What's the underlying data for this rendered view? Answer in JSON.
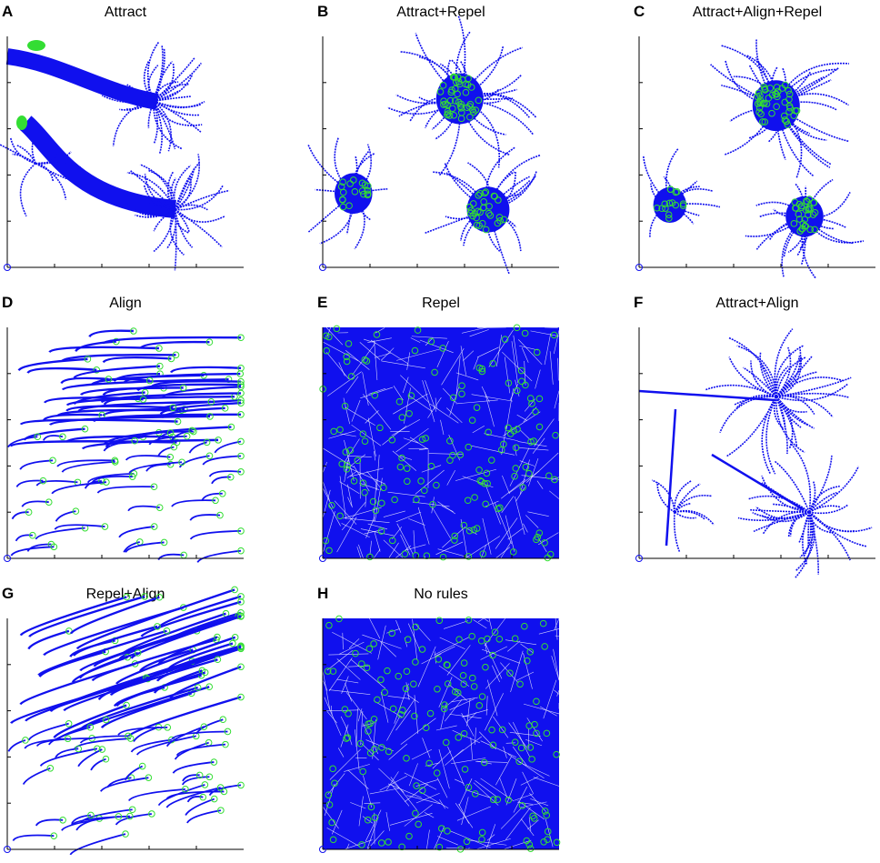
{
  "panels": [
    {
      "letter": "A",
      "title": "Attract"
    },
    {
      "letter": "B",
      "title": "Attract+Repel"
    },
    {
      "letter": "C",
      "title": "Attract+Align+Repel"
    },
    {
      "letter": "D",
      "title": "Align"
    },
    {
      "letter": "E",
      "title": "Repel"
    },
    {
      "letter": "F",
      "title": "Attract+Align"
    },
    {
      "letter": "G",
      "title": "Repel+Align"
    },
    {
      "letter": "H",
      "title": "No rules"
    }
  ]
}
